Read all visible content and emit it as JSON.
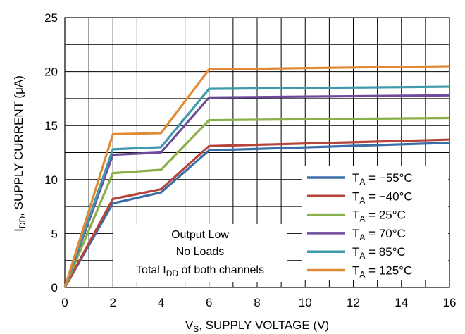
{
  "chart_data": {
    "type": "line",
    "xlabel": {
      "main": "V",
      "sub": "S",
      "rest": ", SUPPLY VOLTAGE (V)"
    },
    "ylabel": {
      "main": "I",
      "sub": "DD",
      "rest": ", SUPPLY CURRENT (μA)"
    },
    "xlim": [
      0,
      16
    ],
    "ylim": [
      0,
      25
    ],
    "x_ticks": [
      "0",
      "2",
      "4",
      "6",
      "8",
      "10",
      "12",
      "14",
      "16"
    ],
    "y_ticks": [
      "0",
      "5",
      "10",
      "15",
      "20",
      "25"
    ],
    "grid": true,
    "legend_position": "bottom-right",
    "annotation": {
      "line1": "Output Low",
      "line2": "No Loads",
      "line3_pre": "Total I",
      "line3_sub": "DD",
      "line3_post": " of both channels"
    },
    "x": [
      0,
      2,
      4,
      6,
      16
    ],
    "series": [
      {
        "name": "T_A = −55°C",
        "label_main": "T",
        "label_sub": "A",
        "label_rest": " = −55°C",
        "color": "#3b6ea8",
        "values": [
          0,
          7.8,
          8.8,
          12.7,
          13.4
        ]
      },
      {
        "name": "T_A = −40°C",
        "label_main": "T",
        "label_sub": "A",
        "label_rest": " = −40°C",
        "color": "#b5443b",
        "values": [
          0,
          8.2,
          9.1,
          13.1,
          13.7
        ]
      },
      {
        "name": "T_A = 25°C",
        "label_main": "T",
        "label_sub": "A",
        "label_rest": " = 25°C",
        "color": "#8ab04a",
        "values": [
          0,
          10.6,
          10.9,
          15.5,
          15.7
        ]
      },
      {
        "name": "T_A = 70°C",
        "label_main": "T",
        "label_sub": "A",
        "label_rest": " = 70°C",
        "color": "#6e4b9a",
        "values": [
          0,
          12.3,
          12.5,
          17.6,
          17.8
        ]
      },
      {
        "name": "T_A = 85°C",
        "label_main": "T",
        "label_sub": "A",
        "label_rest": " = 85°C",
        "color": "#3f9aab",
        "values": [
          0,
          12.8,
          13.0,
          18.4,
          18.6
        ]
      },
      {
        "name": "T_A = 125°C",
        "label_main": "T",
        "label_sub": "A",
        "label_rest": " = 125°C",
        "color": "#e08a36",
        "values": [
          0,
          14.2,
          14.3,
          20.2,
          20.5
        ]
      }
    ]
  }
}
